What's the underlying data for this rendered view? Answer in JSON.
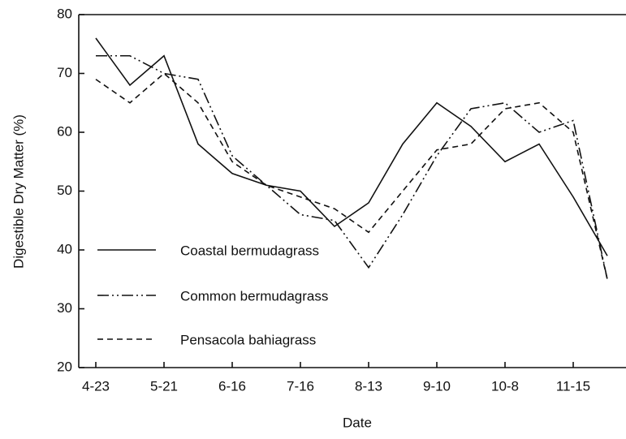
{
  "chart_data": {
    "type": "line",
    "x_label": "Date",
    "y_label": "Digestible Dry Matter (%)",
    "categories": [
      "4-23",
      null,
      "5-21",
      null,
      "6-16",
      null,
      "7-16",
      null,
      "8-13",
      null,
      "9-10",
      null,
      "10-8",
      null,
      "11-15",
      null
    ],
    "series": [
      {
        "name": "Coastal bermudagrass",
        "color": "#111111",
        "dash": "solid",
        "values": [
          76,
          68,
          73,
          58,
          53,
          51,
          50,
          44,
          48,
          58,
          65,
          61,
          55,
          58,
          49,
          39
        ]
      },
      {
        "name": "Common bermudagrass",
        "color": "#111111",
        "dash": "dash-dot-dot",
        "values": [
          73,
          73,
          70,
          69,
          56,
          51,
          46,
          45,
          37,
          46,
          56,
          64,
          65,
          60,
          62,
          35
        ]
      },
      {
        "name": "Pensacola bahiagrass",
        "color": "#111111",
        "dash": "dashed",
        "values": [
          69,
          65,
          70,
          65,
          55,
          51,
          49,
          47,
          43,
          50,
          57,
          58,
          64,
          65,
          60,
          35
        ]
      }
    ],
    "ylim": [
      20,
      80
    ],
    "yticks": [
      20,
      30,
      40,
      50,
      60,
      70,
      80
    ],
    "legend": "lower-left",
    "grid": false
  }
}
